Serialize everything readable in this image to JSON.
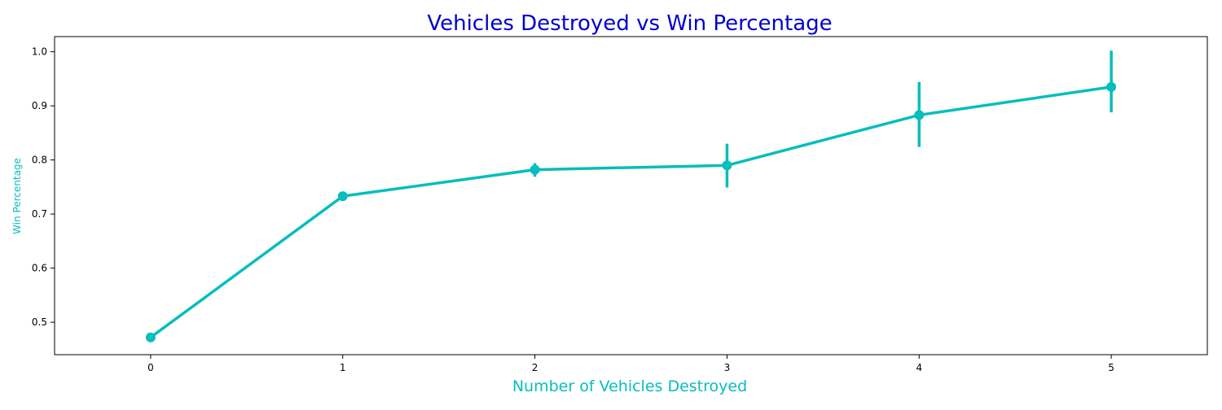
{
  "chart_data": {
    "type": "line",
    "title": "Vehicles Destroyed vs Win Percentage",
    "xlabel": "Number of Vehicles Destroyed",
    "ylabel": "Win Percentage",
    "categories": [
      "0",
      "1",
      "2",
      "3",
      "4",
      "5"
    ],
    "series": [
      {
        "values": [
          0.472,
          0.733,
          0.782,
          0.79,
          0.883,
          0.935
        ],
        "error_low": [
          0.47,
          0.73,
          0.769,
          0.749,
          0.824,
          0.888
        ],
        "error_high": [
          0.474,
          0.736,
          0.794,
          0.83,
          0.944,
          1.002
        ]
      }
    ],
    "y_ticks": [
      "0.5",
      "0.6",
      "0.7",
      "0.8",
      "0.9",
      "1.0"
    ],
    "ylim": [
      0.44,
      1.028
    ],
    "xlim": [
      -0.5,
      5.5
    ],
    "grid": false,
    "colors": {
      "series": "#08bdbd",
      "title": "#0000cd",
      "axis_label": "#08bdbd",
      "axes": "#000000"
    }
  }
}
